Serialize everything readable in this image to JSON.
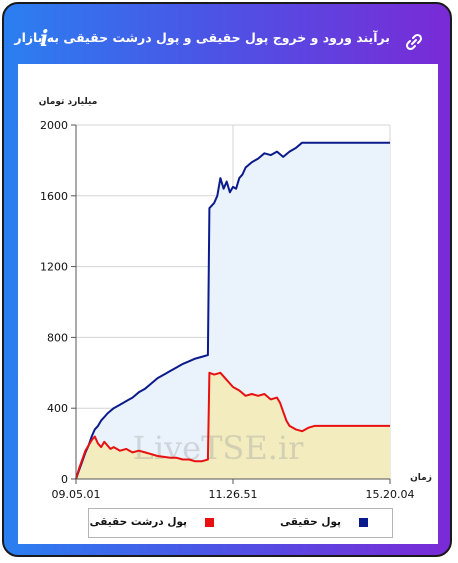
{
  "header": {
    "title": "برآیند ورود و خروج پول حقیقی و پول درشت حقیقی به بازار",
    "info_icon": "info-icon",
    "link_icon": "link-icon"
  },
  "watermark": "LiveTSE.ir",
  "chart_data": {
    "type": "area",
    "ylabel": "میلیارد تومان",
    "xlabel": "زمان",
    "ylim": [
      0,
      2000
    ],
    "yticks": [
      0,
      400,
      800,
      1200,
      1600,
      2000
    ],
    "xtick_labels": [
      "09.05.01",
      "11.26.51",
      "15.20.04"
    ],
    "xlim": [
      0,
      100
    ],
    "xtick_positions": [
      0,
      50,
      100
    ],
    "grid": true,
    "legend_position": "bottom",
    "series": [
      {
        "name": "پول حقیقی",
        "color": "#0b1a8c",
        "fill": "#eaf3fb",
        "points": [
          [
            0,
            0
          ],
          [
            1,
            50
          ],
          [
            2,
            100
          ],
          [
            3,
            150
          ],
          [
            4,
            190
          ],
          [
            5,
            240
          ],
          [
            6,
            280
          ],
          [
            7,
            300
          ],
          [
            8,
            330
          ],
          [
            9,
            350
          ],
          [
            10,
            370
          ],
          [
            11,
            385
          ],
          [
            12,
            400
          ],
          [
            14,
            420
          ],
          [
            16,
            440
          ],
          [
            18,
            460
          ],
          [
            20,
            490
          ],
          [
            22,
            510
          ],
          [
            24,
            540
          ],
          [
            26,
            570
          ],
          [
            28,
            590
          ],
          [
            30,
            610
          ],
          [
            32,
            630
          ],
          [
            34,
            650
          ],
          [
            36,
            665
          ],
          [
            38,
            680
          ],
          [
            40,
            690
          ],
          [
            42,
            700
          ],
          [
            42.5,
            1530
          ],
          [
            44,
            1560
          ],
          [
            45,
            1600
          ],
          [
            46,
            1700
          ],
          [
            47,
            1640
          ],
          [
            48,
            1680
          ],
          [
            49,
            1620
          ],
          [
            50,
            1650
          ],
          [
            51,
            1640
          ],
          [
            52,
            1700
          ],
          [
            53,
            1720
          ],
          [
            54,
            1760
          ],
          [
            56,
            1790
          ],
          [
            58,
            1810
          ],
          [
            60,
            1840
          ],
          [
            62,
            1830
          ],
          [
            64,
            1850
          ],
          [
            66,
            1820
          ],
          [
            68,
            1850
          ],
          [
            70,
            1870
          ],
          [
            72,
            1900
          ],
          [
            75,
            1900
          ],
          [
            80,
            1900
          ],
          [
            85,
            1900
          ],
          [
            90,
            1900
          ],
          [
            95,
            1900
          ],
          [
            100,
            1900
          ]
        ]
      },
      {
        "name": "پول درشت حقیقی",
        "color": "#e81010",
        "fill": "#f2ecbf",
        "points": [
          [
            0,
            0
          ],
          [
            1,
            60
          ],
          [
            2,
            110
          ],
          [
            3,
            160
          ],
          [
            4,
            190
          ],
          [
            5,
            220
          ],
          [
            6,
            240
          ],
          [
            7,
            200
          ],
          [
            8,
            180
          ],
          [
            9,
            210
          ],
          [
            10,
            190
          ],
          [
            11,
            170
          ],
          [
            12,
            180
          ],
          [
            14,
            160
          ],
          [
            16,
            170
          ],
          [
            18,
            150
          ],
          [
            20,
            160
          ],
          [
            22,
            150
          ],
          [
            24,
            140
          ],
          [
            26,
            130
          ],
          [
            28,
            125
          ],
          [
            30,
            120
          ],
          [
            32,
            120
          ],
          [
            34,
            110
          ],
          [
            36,
            110
          ],
          [
            38,
            100
          ],
          [
            40,
            100
          ],
          [
            42,
            110
          ],
          [
            42.5,
            600
          ],
          [
            44,
            590
          ],
          [
            46,
            600
          ],
          [
            48,
            560
          ],
          [
            50,
            520
          ],
          [
            52,
            500
          ],
          [
            54,
            470
          ],
          [
            56,
            480
          ],
          [
            58,
            470
          ],
          [
            60,
            480
          ],
          [
            62,
            450
          ],
          [
            64,
            460
          ],
          [
            65,
            430
          ],
          [
            66,
            380
          ],
          [
            67,
            330
          ],
          [
            68,
            300
          ],
          [
            70,
            280
          ],
          [
            72,
            270
          ],
          [
            74,
            290
          ],
          [
            76,
            300
          ],
          [
            80,
            300
          ],
          [
            85,
            300
          ],
          [
            90,
            300
          ],
          [
            95,
            300
          ],
          [
            100,
            300
          ]
        ]
      }
    ]
  }
}
